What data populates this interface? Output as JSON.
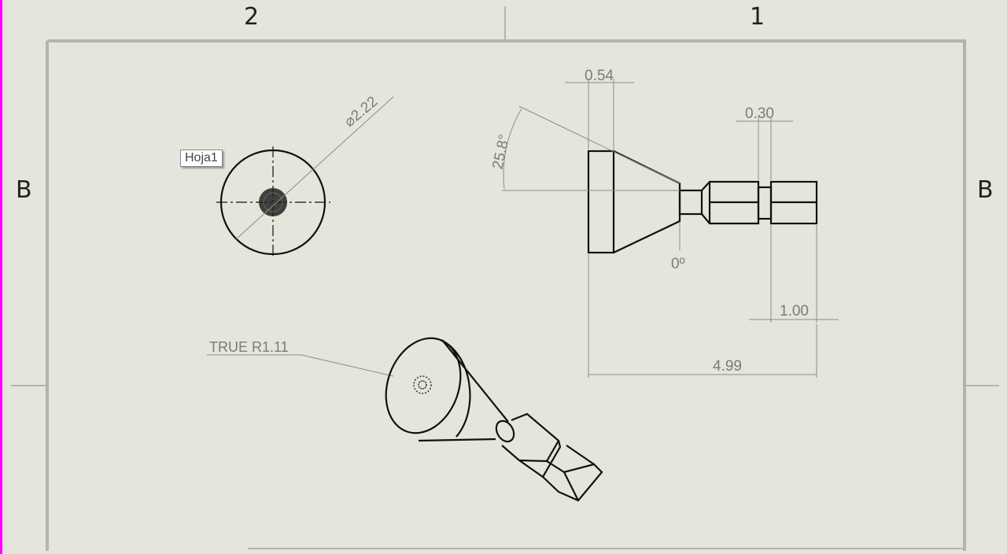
{
  "zones": {
    "top_left": "2",
    "top_right": "1",
    "left": "B",
    "right": "B"
  },
  "sheet_tag": "Hoja1",
  "dimensions": {
    "diameter": "⌀2.22",
    "face_width": "0.54",
    "angle": "25.8°",
    "angle_zero": "0º",
    "groove": "0.30",
    "hex_length": "1.00",
    "overall_length": "4.99",
    "radius_note": "TRUE R1.11"
  },
  "colors": {
    "background": "#e6e5dc",
    "sheet_border": "#b3b3b3",
    "dimension": "#7b7b7b",
    "geometry": "#111111",
    "left_edge": "#ff00ff"
  }
}
